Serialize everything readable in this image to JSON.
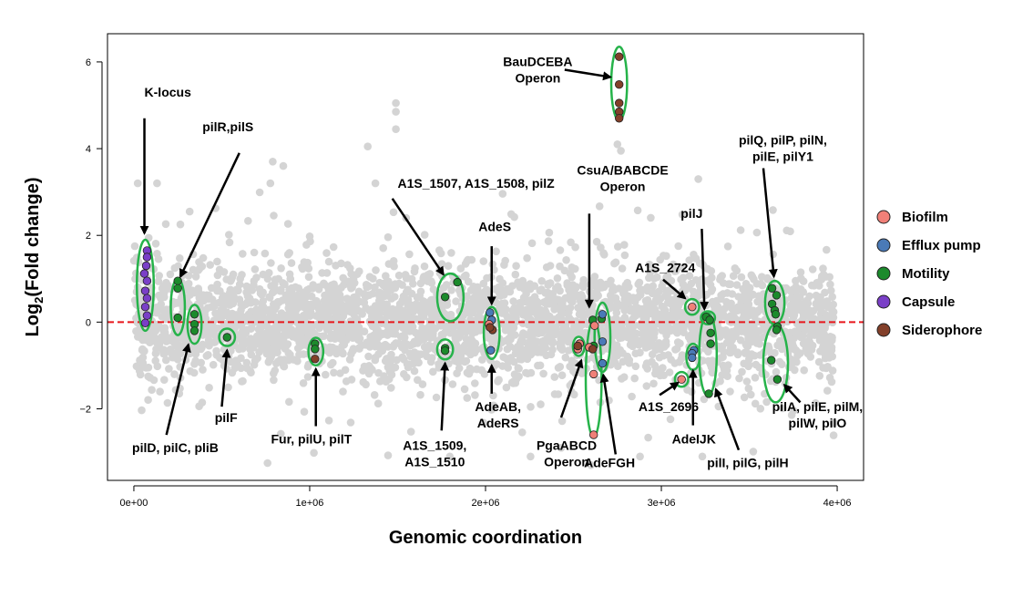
{
  "chart_data": {
    "type": "scatter",
    "title": "",
    "xlabel": "Genomic coordination",
    "ylabel": "Log₂(Fold change)",
    "xlim": [
      -150000,
      4150000
    ],
    "ylim": [
      -3.65,
      6.65
    ],
    "x_ticks": [
      0,
      1000000,
      2000000,
      3000000,
      4000000
    ],
    "x_tick_labels": [
      "0e+00",
      "1e+06",
      "2e+06",
      "3e+06",
      "4e+06"
    ],
    "y_ticks": [
      -2,
      0,
      2,
      4,
      6
    ],
    "y_tick_labels": [
      "−2",
      "0",
      "2",
      "4",
      "6"
    ],
    "reference_line": {
      "y": 0,
      "style": "dashed",
      "color": "#e8161b"
    },
    "background_points": {
      "color": "#d4d4d4",
      "description_count": 3200
    },
    "colors": {
      "Biofilm": "#f08078",
      "Efflux pump": "#4a7ab7",
      "Motility": "#1c8a2c",
      "Capsule": "#7a3fc7",
      "Siderophore": "#83402a",
      "highlight_ellipse": "#26b34a",
      "background": "#d4d4d4"
    },
    "legend": {
      "position": "right",
      "entries": [
        "Biofilm",
        "Efflux pump",
        "Motility",
        "Capsule",
        "Siderophore"
      ]
    },
    "series": [
      {
        "name": "Capsule",
        "points": [
          [
            75000,
            1.65
          ],
          [
            75000,
            1.5
          ],
          [
            70000,
            1.3
          ],
          [
            60000,
            1.12
          ],
          [
            75000,
            0.95
          ],
          [
            65000,
            0.72
          ],
          [
            75000,
            0.55
          ],
          [
            65000,
            0.35
          ],
          [
            75000,
            0.15
          ],
          [
            65000,
            -0.02
          ]
        ]
      },
      {
        "name": "Motility",
        "points": [
          [
            250000,
            0.95
          ],
          [
            250000,
            0.78
          ],
          [
            250000,
            0.1
          ],
          [
            345000,
            0.18
          ],
          [
            345000,
            -0.05
          ],
          [
            345000,
            -0.2
          ],
          [
            530000,
            -0.35
          ],
          [
            1030000,
            -0.5
          ],
          [
            1030000,
            -0.62
          ],
          [
            1770000,
            0.58
          ],
          [
            1840000,
            0.92
          ],
          [
            1770000,
            -0.6
          ],
          [
            1770000,
            -0.66
          ],
          [
            2610000,
            0.05
          ],
          [
            2660000,
            0.08
          ],
          [
            2615000,
            -0.55
          ],
          [
            3255000,
            0.12
          ],
          [
            3275000,
            0.05
          ],
          [
            3280000,
            -0.25
          ],
          [
            3280000,
            -0.5
          ],
          [
            3270000,
            -1.65
          ],
          [
            3630000,
            0.78
          ],
          [
            3655000,
            0.62
          ],
          [
            3630000,
            0.42
          ],
          [
            3645000,
            0.27
          ],
          [
            3650000,
            0.18
          ],
          [
            3660000,
            -0.1
          ],
          [
            3655000,
            -0.18
          ],
          [
            3625000,
            -0.88
          ],
          [
            3660000,
            -1.32
          ]
        ]
      },
      {
        "name": "Efflux pump",
        "points": [
          [
            2025000,
            0.22
          ],
          [
            2035000,
            0.05
          ],
          [
            2030000,
            -0.65
          ],
          [
            2665000,
            0.18
          ],
          [
            2665000,
            -0.45
          ],
          [
            2665000,
            -0.95
          ],
          [
            3185000,
            -0.65
          ],
          [
            3175000,
            -0.72
          ],
          [
            3175000,
            -0.82
          ]
        ]
      },
      {
        "name": "Biofilm",
        "points": [
          [
            2020000,
            -0.05
          ],
          [
            2535000,
            -0.5
          ],
          [
            2525000,
            -0.62
          ],
          [
            2590000,
            -0.58
          ],
          [
            2620000,
            -0.08
          ],
          [
            2615000,
            -1.2
          ],
          [
            2615000,
            -2.6
          ],
          [
            3175000,
            0.35
          ],
          [
            3115000,
            -1.32
          ]
        ]
      },
      {
        "name": "Siderophore",
        "points": [
          [
            2040000,
            -0.18
          ],
          [
            2525000,
            -0.55
          ],
          [
            2610000,
            -0.62
          ],
          [
            2760000,
            6.12
          ],
          [
            2760000,
            5.48
          ],
          [
            2760000,
            5.05
          ],
          [
            2760000,
            4.85
          ],
          [
            2760000,
            4.7
          ],
          [
            1030000,
            -0.85
          ],
          [
            2025000,
            -0.12
          ]
        ]
      }
    ],
    "highlights": [
      {
        "cx": 65000,
        "cy": 0.85,
        "rx": 48000,
        "ry": 1.05
      },
      {
        "cx": 250000,
        "cy": 0.35,
        "rx": 40000,
        "ry": 0.65
      },
      {
        "cx": 345000,
        "cy": -0.05,
        "rx": 40000,
        "ry": 0.45
      },
      {
        "cx": 530000,
        "cy": -0.35,
        "rx": 45000,
        "ry": 0.2
      },
      {
        "cx": 1035000,
        "cy": -0.68,
        "rx": 42000,
        "ry": 0.32
      },
      {
        "cx": 1800000,
        "cy": 0.57,
        "rx": 75000,
        "ry": 0.55
      },
      {
        "cx": 1770000,
        "cy": -0.63,
        "rx": 45000,
        "ry": 0.23
      },
      {
        "cx": 2035000,
        "cy": -0.25,
        "rx": 45000,
        "ry": 0.6
      },
      {
        "cx": 2530000,
        "cy": -0.56,
        "rx": 33000,
        "ry": 0.22
      },
      {
        "cx": 2615000,
        "cy": -1.3,
        "rx": 45000,
        "ry": 1.35
      },
      {
        "cx": 2665000,
        "cy": -0.35,
        "rx": 45000,
        "ry": 0.8
      },
      {
        "cx": 2760000,
        "cy": 5.5,
        "rx": 45000,
        "ry": 0.85
      },
      {
        "cx": 3175000,
        "cy": 0.35,
        "rx": 40000,
        "ry": 0.18
      },
      {
        "cx": 3115000,
        "cy": -1.32,
        "rx": 38000,
        "ry": 0.17
      },
      {
        "cx": 3180000,
        "cy": -0.8,
        "rx": 38000,
        "ry": 0.3
      },
      {
        "cx": 3265000,
        "cy": 0.1,
        "rx": 40000,
        "ry": 0.15
      },
      {
        "cx": 3265000,
        "cy": -0.75,
        "rx": 50000,
        "ry": 0.95
      },
      {
        "cx": 3645000,
        "cy": 0.45,
        "rx": 55000,
        "ry": 0.5
      },
      {
        "cx": 3650000,
        "cy": -0.95,
        "rx": 70000,
        "ry": 0.9
      }
    ],
    "annotations": [
      {
        "lines": [
          "K-locus"
        ],
        "tx": 60000,
        "ty": 5.2,
        "ax": [
          60000,
          4.7
        ],
        "ah": [
          60000,
          2.05
        ]
      },
      {
        "lines": [
          "pilR,pilS"
        ],
        "tx": 390000,
        "ty": 4.4,
        "ax": [
          600000,
          3.9
        ],
        "ah": [
          265000,
          1.05
        ]
      },
      {
        "lines": [
          "A1S_1507, A1S_1508, pilZ"
        ],
        "tx": 1500000,
        "ty": 3.1,
        "ax": [
          1470000,
          2.85
        ],
        "ah": [
          1760000,
          1.1
        ]
      },
      {
        "lines": [
          "AdeS"
        ],
        "tx": 1960000,
        "ty": 2.1,
        "ax": [
          2035000,
          1.75
        ],
        "ah": [
          2035000,
          0.42
        ]
      },
      {
        "lines": [
          "BauDCEBA",
          "Operon"
        ],
        "tx": 2100000,
        "ty": 5.9,
        "ax": [
          2450000,
          5.82
        ],
        "ah": [
          2710000,
          5.65
        ]
      },
      {
        "lines": [
          "CsuA/BABCDE",
          "Operon"
        ],
        "tx": 2520000,
        "ty": 3.4,
        "ax": [
          2590000,
          2.5
        ],
        "ah": [
          2590000,
          0.35
        ]
      },
      {
        "lines": [
          "A1S_2724"
        ],
        "tx": 2850000,
        "ty": 1.15,
        "ax": [
          3010000,
          0.98
        ],
        "ah": [
          3135000,
          0.55
        ]
      },
      {
        "lines": [
          "pilJ"
        ],
        "tx": 3110000,
        "ty": 2.4,
        "ax": [
          3230000,
          2.15
        ],
        "ah": [
          3245000,
          0.3
        ]
      },
      {
        "lines": [
          "pilQ, pilP, pilN,",
          "pilE, pilY1"
        ],
        "tx": 3440000,
        "ty": 4.1,
        "ax": [
          3580000,
          3.55
        ],
        "ah": [
          3640000,
          1.05
        ]
      },
      {
        "lines": [
          "pilD, pilC, pliB"
        ],
        "tx": -10000,
        "ty": -3.0,
        "ax": [
          185000,
          -2.6
        ],
        "ah": [
          310000,
          -0.52
        ]
      },
      {
        "lines": [
          "pilF"
        ],
        "tx": 460000,
        "ty": -2.3,
        "ax": [
          500000,
          -1.95
        ],
        "ah": [
          530000,
          -0.65
        ]
      },
      {
        "lines": [
          "Fur, pilU, pilT"
        ],
        "tx": 780000,
        "ty": -2.8,
        "ax": [
          1035000,
          -2.4
        ],
        "ah": [
          1035000,
          -1.08
        ]
      },
      {
        "lines": [
          "A1S_1509,",
          "A1S_1510"
        ],
        "tx": 1530000,
        "ty": -2.95,
        "ax": [
          1750000,
          -2.5
        ],
        "ah": [
          1770000,
          -0.95
        ]
      },
      {
        "lines": [
          "AdeAB,",
          "AdeRS"
        ],
        "tx": 1940000,
        "ty": -2.05,
        "ax": [
          2035000,
          -1.65
        ],
        "ah": [
          2035000,
          -1.0
        ]
      },
      {
        "lines": [
          "PgaABCD",
          "Operon"
        ],
        "tx": 2290000,
        "ty": -2.95,
        "ax": [
          2430000,
          -2.2
        ],
        "ah": [
          2545000,
          -0.88
        ]
      },
      {
        "lines": [
          "AdeFGH"
        ],
        "tx": 2560000,
        "ty": -3.35,
        "ax": [
          2740000,
          -3.05
        ],
        "ah": [
          2670000,
          -1.22
        ]
      },
      {
        "lines": [
          "A1S_2696"
        ],
        "tx": 2870000,
        "ty": -2.05,
        "ax": [
          2990000,
          -1.68
        ],
        "ah": [
          3095000,
          -1.4
        ]
      },
      {
        "lines": [
          "AdeIJK"
        ],
        "tx": 3060000,
        "ty": -2.8,
        "ax": [
          3180000,
          -2.38
        ],
        "ah": [
          3180000,
          -1.12
        ]
      },
      {
        "lines": [
          "pilI, pilG, pilH"
        ],
        "tx": 3260000,
        "ty": -3.35,
        "ax": [
          3440000,
          -2.95
        ],
        "ah": [
          3310000,
          -1.55
        ]
      },
      {
        "lines": [
          "pilA, pilE, pilM,",
          "pilW, pilO"
        ],
        "tx": 3630000,
        "ty": -2.05,
        "ax": [
          3790000,
          -1.85
        ],
        "ah": [
          3700000,
          -1.45
        ]
      }
    ]
  }
}
